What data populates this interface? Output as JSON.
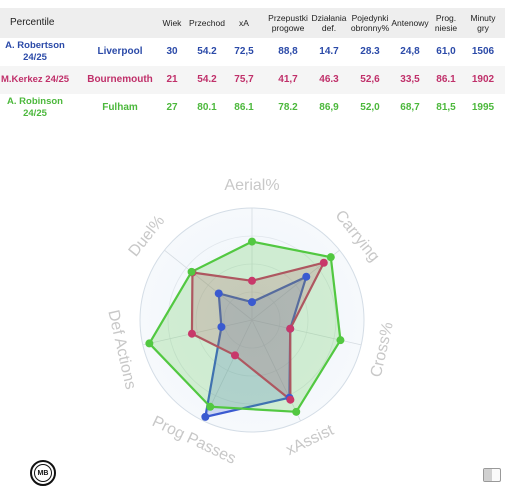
{
  "table": {
    "header": [
      "Percentile",
      "Wiek",
      "Przechod",
      "xA",
      "Przepustki progowe",
      "Działania def.",
      "Pojedynki obronny%",
      "Antenowy",
      "Prog. niesie",
      "Minuty gry"
    ],
    "rows": [
      {
        "player": "A. Robertson 24/25",
        "club": "Liverpool",
        "color": "#2b4aa8",
        "values": [
          "30",
          "54.2",
          "72,5",
          "88,8",
          "14.7",
          "28.3",
          "24,8",
          "61,0",
          "1506"
        ]
      },
      {
        "player": "M.Kerkez 24/25",
        "club": "Bournemouth",
        "color": "#c0306a",
        "values": [
          "21",
          "54.2",
          "75,7",
          "41,7",
          "46.3",
          "52,6",
          "33,5",
          "86.1",
          "1902"
        ]
      },
      {
        "player": "A. Robinson 24/25",
        "club": "Fulham",
        "color": "#4cb83c",
        "values": [
          "27",
          "80.1",
          "86.1",
          "78.2",
          "86,9",
          "52,0",
          "68,7",
          "81,5",
          "1995"
        ]
      }
    ]
  },
  "chart_data": {
    "type": "radar",
    "axes": [
      "Aerial%",
      "Carrying",
      "Cross%",
      "xAssist",
      "Prog Passes",
      "Def Actions",
      "Duel%"
    ],
    "range": [
      0,
      100
    ],
    "grid": true,
    "series": [
      {
        "name": "A. Robertson 24/25",
        "color": "#3a5ad0",
        "values": [
          16,
          62,
          35,
          77,
          96,
          28,
          38
        ]
      },
      {
        "name": "M.Kerkez 24/25",
        "color": "#c8386a",
        "values": [
          35,
          82,
          35,
          79,
          35,
          55,
          68
        ]
      },
      {
        "name": "A. Robinson 24/25",
        "color": "#52c841",
        "values": [
          70,
          90,
          81,
          91,
          86,
          94,
          69
        ]
      }
    ]
  },
  "logo": {
    "text": "MB"
  }
}
